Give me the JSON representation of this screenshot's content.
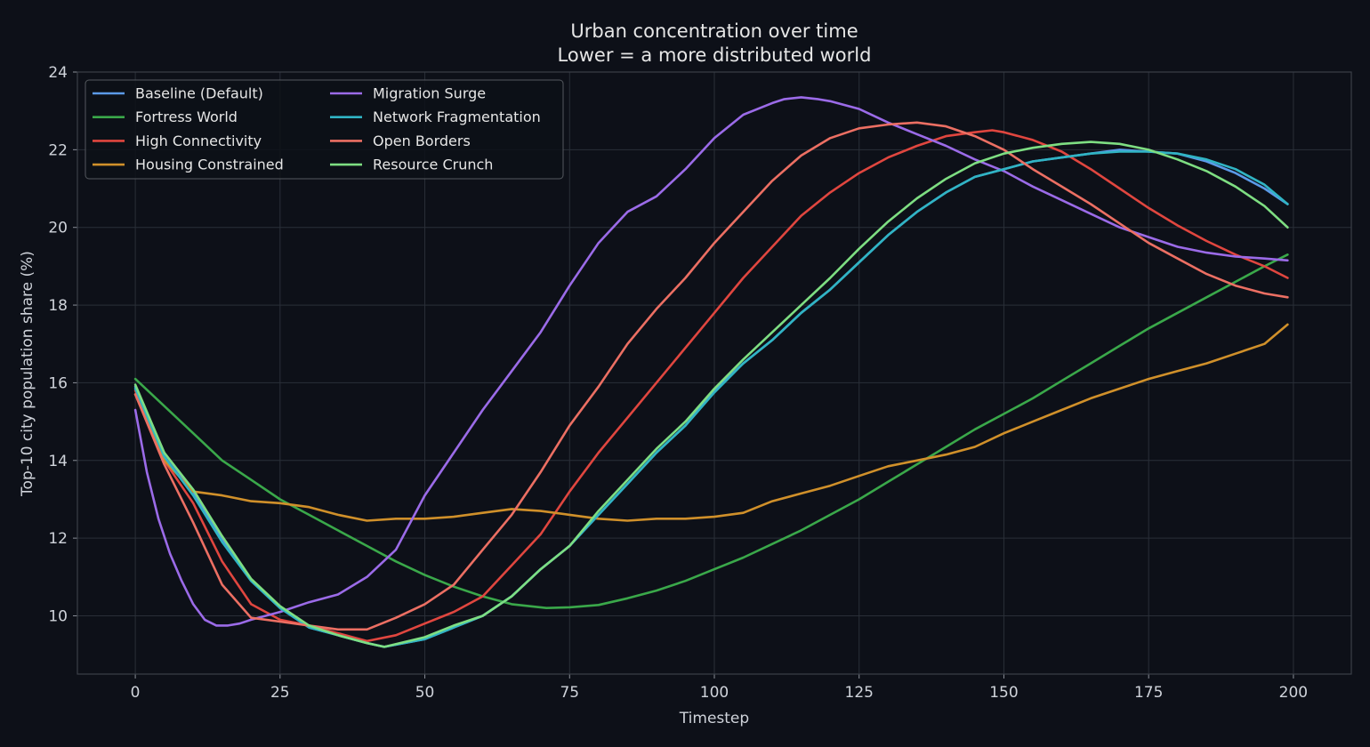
{
  "chart_data": {
    "type": "line",
    "title": "Urban concentration over time",
    "subtitle": "Lower = a more distributed world",
    "xlabel": "Timestep",
    "ylabel": "Top-10 city population share (%)",
    "xlim": [
      -10,
      210
    ],
    "ylim": [
      8.5,
      24
    ],
    "xticks": [
      0,
      25,
      50,
      75,
      100,
      125,
      150,
      175,
      200
    ],
    "yticks": [
      10,
      12,
      14,
      16,
      18,
      20,
      22,
      24
    ],
    "grid": true,
    "legend_position": "upper-left",
    "legend_columns": 2,
    "background_color": "#0d1018",
    "series": [
      {
        "name": "Baseline (Default)",
        "color": "#5b9ae8",
        "x": [
          0,
          5,
          10,
          15,
          20,
          25,
          30,
          35,
          40,
          43,
          50,
          55,
          60,
          65,
          70,
          75,
          80,
          85,
          90,
          95,
          100,
          105,
          110,
          115,
          120,
          125,
          130,
          135,
          140,
          145,
          150,
          155,
          160,
          165,
          170,
          175,
          180,
          185,
          190,
          195,
          199
        ],
        "y": [
          15.9,
          14.2,
          13.2,
          12.0,
          10.9,
          10.2,
          9.7,
          9.5,
          9.3,
          9.2,
          9.4,
          9.7,
          10.0,
          10.5,
          11.2,
          11.8,
          12.6,
          13.4,
          14.2,
          14.9,
          15.8,
          16.5,
          17.1,
          17.8,
          18.4,
          19.1,
          19.8,
          20.4,
          20.9,
          21.3,
          21.5,
          21.7,
          21.8,
          21.9,
          22.0,
          21.95,
          21.9,
          21.7,
          21.4,
          21.0,
          20.6
        ]
      },
      {
        "name": "Fortress World",
        "color": "#3aa84a",
        "x": [
          0,
          5,
          10,
          15,
          20,
          25,
          30,
          35,
          40,
          45,
          50,
          55,
          60,
          65,
          71,
          75,
          80,
          85,
          90,
          95,
          100,
          105,
          110,
          115,
          120,
          125,
          130,
          135,
          140,
          145,
          150,
          155,
          160,
          165,
          170,
          175,
          180,
          185,
          190,
          195,
          199
        ],
        "y": [
          16.1,
          15.4,
          14.7,
          14.0,
          13.5,
          13.0,
          12.6,
          12.2,
          11.8,
          11.4,
          11.05,
          10.75,
          10.5,
          10.3,
          10.2,
          10.22,
          10.28,
          10.45,
          10.65,
          10.9,
          11.2,
          11.5,
          11.85,
          12.2,
          12.6,
          13.0,
          13.45,
          13.9,
          14.35,
          14.8,
          15.2,
          15.6,
          16.05,
          16.5,
          16.95,
          17.4,
          17.8,
          18.2,
          18.6,
          19.0,
          19.3
        ]
      },
      {
        "name": "High Connectivity",
        "color": "#e0463f",
        "x": [
          0,
          5,
          10,
          15,
          20,
          25,
          30,
          35,
          40,
          45,
          50,
          55,
          60,
          65,
          70,
          75,
          80,
          85,
          90,
          95,
          100,
          105,
          110,
          115,
          120,
          125,
          130,
          135,
          140,
          145,
          148,
          150,
          155,
          160,
          165,
          170,
          175,
          180,
          185,
          190,
          195,
          199
        ],
        "y": [
          15.8,
          14.0,
          12.9,
          11.4,
          10.3,
          9.9,
          9.75,
          9.55,
          9.35,
          9.5,
          9.8,
          10.1,
          10.5,
          11.3,
          12.1,
          13.2,
          14.2,
          15.1,
          16.0,
          16.9,
          17.8,
          18.7,
          19.5,
          20.3,
          20.9,
          21.4,
          21.8,
          22.1,
          22.35,
          22.45,
          22.5,
          22.45,
          22.25,
          21.95,
          21.5,
          21.0,
          20.5,
          20.05,
          19.65,
          19.3,
          19.0,
          18.7
        ]
      },
      {
        "name": "Housing Constrained",
        "color": "#d0902a",
        "x": [
          0,
          5,
          10,
          15,
          20,
          25,
          30,
          35,
          40,
          45,
          50,
          55,
          60,
          65,
          70,
          75,
          80,
          85,
          90,
          95,
          100,
          105,
          110,
          115,
          120,
          125,
          130,
          135,
          140,
          145,
          150,
          155,
          160,
          165,
          170,
          175,
          180,
          185,
          190,
          195,
          199
        ],
        "y": [
          15.7,
          14.0,
          13.2,
          13.1,
          12.95,
          12.9,
          12.8,
          12.6,
          12.45,
          12.5,
          12.5,
          12.55,
          12.65,
          12.75,
          12.7,
          12.6,
          12.5,
          12.45,
          12.5,
          12.5,
          12.55,
          12.65,
          12.95,
          13.15,
          13.35,
          13.6,
          13.85,
          14.0,
          14.15,
          14.35,
          14.7,
          15.0,
          15.3,
          15.6,
          15.85,
          16.1,
          16.3,
          16.5,
          16.75,
          17.0,
          17.5
        ]
      },
      {
        "name": "Migration Surge",
        "color": "#9b6be8",
        "x": [
          0,
          2,
          4,
          6,
          8,
          10,
          12,
          14,
          16,
          18,
          20,
          25,
          30,
          35,
          40,
          45,
          50,
          55,
          60,
          65,
          70,
          75,
          80,
          85,
          90,
          95,
          100,
          105,
          110,
          112,
          115,
          118,
          120,
          125,
          130,
          135,
          140,
          145,
          150,
          155,
          160,
          165,
          170,
          175,
          180,
          185,
          190,
          195,
          199
        ],
        "y": [
          15.3,
          13.7,
          12.5,
          11.6,
          10.9,
          10.3,
          9.9,
          9.75,
          9.75,
          9.8,
          9.9,
          10.1,
          10.35,
          10.55,
          11.0,
          11.7,
          13.1,
          14.2,
          15.3,
          16.3,
          17.3,
          18.5,
          19.6,
          20.4,
          20.8,
          21.5,
          22.3,
          22.9,
          23.2,
          23.3,
          23.35,
          23.3,
          23.25,
          23.05,
          22.7,
          22.4,
          22.1,
          21.75,
          21.45,
          21.05,
          20.7,
          20.35,
          20.0,
          19.75,
          19.5,
          19.35,
          19.25,
          19.2,
          19.15
        ]
      },
      {
        "name": "Network Fragmentation",
        "color": "#30b4c4",
        "x": [
          0,
          5,
          10,
          15,
          20,
          25,
          30,
          35,
          40,
          43,
          50,
          55,
          60,
          65,
          70,
          75,
          80,
          85,
          90,
          95,
          100,
          105,
          110,
          115,
          120,
          125,
          130,
          135,
          140,
          145,
          150,
          155,
          160,
          165,
          170,
          175,
          180,
          185,
          190,
          195,
          199
        ],
        "y": [
          15.85,
          14.1,
          13.1,
          11.9,
          10.9,
          10.2,
          9.7,
          9.5,
          9.3,
          9.2,
          9.4,
          9.7,
          10.0,
          10.5,
          11.2,
          11.8,
          12.6,
          13.4,
          14.2,
          14.9,
          15.75,
          16.5,
          17.1,
          17.8,
          18.4,
          19.1,
          19.8,
          20.4,
          20.9,
          21.3,
          21.5,
          21.7,
          21.8,
          21.9,
          21.95,
          21.95,
          21.9,
          21.75,
          21.5,
          21.1,
          20.6
        ]
      },
      {
        "name": "Open Borders",
        "color": "#ec6f63",
        "x": [
          0,
          5,
          10,
          15,
          20,
          25,
          30,
          35,
          40,
          45,
          50,
          55,
          60,
          65,
          70,
          75,
          80,
          85,
          90,
          95,
          100,
          105,
          110,
          115,
          120,
          125,
          130,
          135,
          140,
          145,
          150,
          155,
          160,
          165,
          170,
          175,
          180,
          185,
          190,
          195,
          199
        ],
        "y": [
          15.7,
          13.9,
          12.4,
          10.8,
          9.95,
          9.85,
          9.75,
          9.65,
          9.65,
          9.95,
          10.3,
          10.8,
          11.7,
          12.6,
          13.7,
          14.9,
          15.9,
          17.0,
          17.9,
          18.7,
          19.6,
          20.4,
          21.2,
          21.85,
          22.3,
          22.55,
          22.65,
          22.7,
          22.6,
          22.35,
          22.0,
          21.5,
          21.05,
          20.6,
          20.1,
          19.6,
          19.2,
          18.8,
          18.5,
          18.3,
          18.2
        ]
      },
      {
        "name": "Resource Crunch",
        "color": "#7ede82",
        "x": [
          0,
          5,
          10,
          15,
          20,
          25,
          30,
          35,
          40,
          43,
          50,
          55,
          60,
          65,
          70,
          75,
          80,
          85,
          90,
          95,
          100,
          105,
          110,
          115,
          120,
          125,
          130,
          135,
          140,
          145,
          150,
          155,
          160,
          165,
          170,
          175,
          180,
          185,
          190,
          195,
          199
        ],
        "y": [
          15.95,
          14.2,
          13.25,
          12.05,
          10.95,
          10.25,
          9.75,
          9.5,
          9.3,
          9.2,
          9.45,
          9.75,
          10.0,
          10.5,
          11.2,
          11.8,
          12.7,
          13.5,
          14.3,
          15.0,
          15.85,
          16.6,
          17.3,
          18.0,
          18.7,
          19.45,
          20.15,
          20.75,
          21.25,
          21.65,
          21.9,
          22.05,
          22.15,
          22.2,
          22.15,
          22.0,
          21.75,
          21.45,
          21.05,
          20.55,
          20.0
        ]
      }
    ]
  }
}
